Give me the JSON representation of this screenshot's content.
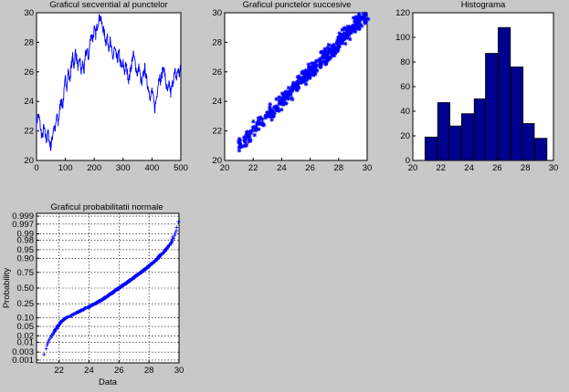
{
  "figure": {
    "background": "#c8c8c8",
    "axes_color": "#ffffff",
    "line_color": "#0000ff",
    "bar_face": "#00008f",
    "bar_edge": "#000000"
  },
  "chart_data": [
    {
      "type": "line",
      "title": "Graficul secvential al punctelor",
      "xlabel": "",
      "ylabel": "",
      "xlim": [
        0,
        500
      ],
      "ylim": [
        20,
        30
      ],
      "xticks": [
        0,
        100,
        200,
        300,
        400,
        500
      ],
      "yticks": [
        20,
        22,
        24,
        26,
        28,
        30
      ],
      "anchors_x": [
        0,
        5,
        10,
        15,
        20,
        25,
        30,
        35,
        40,
        45,
        50,
        55,
        60,
        65,
        70,
        75,
        80,
        85,
        90,
        95,
        100,
        105,
        110,
        115,
        120,
        125,
        130,
        135,
        140,
        145,
        150,
        155,
        160,
        165,
        170,
        175,
        180,
        185,
        190,
        195,
        200,
        205,
        210,
        215,
        220,
        225,
        230,
        235,
        240,
        245,
        250,
        255,
        260,
        265,
        270,
        275,
        280,
        285,
        290,
        295,
        300,
        305,
        310,
        315,
        320,
        325,
        330,
        335,
        340,
        345,
        350,
        355,
        360,
        365,
        370,
        375,
        380,
        385,
        390,
        395,
        400,
        405,
        410,
        415,
        420,
        425,
        430,
        435,
        440,
        445,
        450,
        455,
        460,
        465,
        470,
        475,
        480,
        485,
        490,
        495,
        500
      ],
      "anchors_y": [
        22.4,
        23.1,
        22.8,
        22.0,
        21.5,
        22.3,
        21.7,
        21.4,
        21.9,
        21.2,
        20.9,
        21.6,
        22.4,
        22.0,
        23.1,
        22.5,
        23.4,
        24.2,
        23.6,
        24.5,
        25.6,
        25.0,
        26.1,
        25.4,
        26.3,
        27.0,
        26.4,
        27.4,
        26.8,
        26.1,
        27.0,
        25.9,
        26.6,
        26.0,
        27.2,
        27.5,
        26.9,
        27.9,
        28.6,
        28.2,
        28.9,
        28.5,
        29.1,
        29.5,
        29.8,
        29.3,
        29.0,
        28.6,
        28.0,
        28.4,
        27.7,
        28.1,
        27.4,
        26.9,
        27.6,
        27.1,
        26.8,
        27.3,
        26.7,
        26.2,
        26.6,
        26.0,
        26.5,
        25.9,
        25.4,
        26.1,
        26.6,
        27.2,
        26.8,
        26.2,
        25.8,
        26.4,
        25.6,
        25.1,
        25.8,
        26.3,
        25.6,
        25.1,
        24.7,
        24.2,
        24.8,
        24.1,
        23.5,
        24.2,
        25.0,
        25.8,
        25.3,
        25.9,
        26.4,
        25.7,
        25.0,
        24.6,
        25.2,
        24.5,
        25.1,
        25.6,
        26.0,
        25.5,
        26.2,
        25.8,
        26.4
      ]
    },
    {
      "type": "scatter",
      "title": "Graficul punctelor succesive",
      "xlabel": "",
      "ylabel": "",
      "xlim": [
        20,
        30
      ],
      "ylim": [
        20,
        30
      ],
      "xticks": [
        20,
        22,
        24,
        26,
        28,
        30
      ],
      "yticks": [
        20,
        22,
        24,
        26,
        28,
        30
      ],
      "marker": "*"
    },
    {
      "type": "bar",
      "title": "Histograma",
      "xlabel": "",
      "ylabel": "",
      "xlim": [
        20,
        30
      ],
      "ylim": [
        0,
        120
      ],
      "xticks": [
        20,
        22,
        24,
        26,
        28,
        30
      ],
      "yticks": [
        0,
        20,
        40,
        60,
        80,
        100,
        120
      ],
      "bin_centers": [
        21.3,
        22.2,
        23.0,
        23.9,
        24.8,
        25.6,
        26.5,
        27.4,
        28.2,
        29.1
      ],
      "bin_width": 0.87,
      "values": [
        19,
        47,
        28,
        38,
        50,
        87,
        108,
        76,
        30,
        18
      ]
    },
    {
      "type": "scatter",
      "title": "Graficul probabilitatii normale",
      "xlabel": "Data",
      "ylabel": "Probability",
      "xlim": [
        20.5,
        30
      ],
      "xticks": [
        22,
        24,
        26,
        28,
        30
      ],
      "yticks": [
        0.001,
        0.003,
        0.01,
        0.02,
        0.05,
        0.1,
        0.25,
        0.5,
        0.75,
        0.9,
        0.95,
        0.98,
        0.99,
        0.997,
        0.999
      ],
      "ytick_labels": [
        "0.001",
        "0.003",
        "0.01",
        "0.02",
        "0.05",
        "0.10",
        "0.25",
        "0.50",
        "0.75",
        "0.90",
        "0.95",
        "0.98",
        "0.99",
        "0.997",
        "0.999"
      ],
      "grid": true,
      "marker": "+",
      "curve_x": [
        20.9,
        21.1,
        21.3,
        21.5,
        21.8,
        22.1,
        22.5,
        23.0,
        23.5,
        24.0,
        24.4,
        24.8,
        25.2,
        25.6,
        26.0,
        26.4,
        26.8,
        27.2,
        27.6,
        28.0,
        28.4,
        28.8,
        29.1,
        29.4,
        29.7,
        29.85,
        30.0
      ],
      "curve_p": [
        0.001,
        0.003,
        0.01,
        0.02,
        0.04,
        0.07,
        0.1,
        0.13,
        0.17,
        0.21,
        0.25,
        0.3,
        0.36,
        0.43,
        0.5,
        0.57,
        0.64,
        0.71,
        0.77,
        0.83,
        0.88,
        0.925,
        0.95,
        0.97,
        0.99,
        0.997,
        0.999
      ]
    }
  ]
}
